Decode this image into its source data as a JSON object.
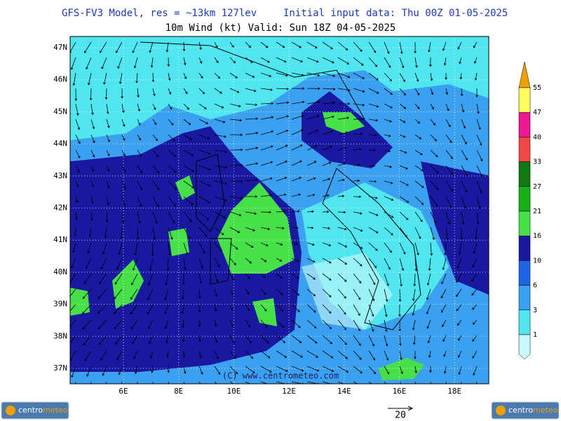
{
  "header": {
    "model": "GFS-FV3 Model, res = ~13km 127lev",
    "init": "Initial input data: Thu 00Z 01-05-2025",
    "field": "10m Wind (kt)  Valid: Sun 18Z 04-05-2025"
  },
  "map": {
    "lat_labels": [
      "47N",
      "46N",
      "45N",
      "44N",
      "43N",
      "42N",
      "41N",
      "40N",
      "39N",
      "38N",
      "37N"
    ],
    "lon_labels": [
      "6E",
      "8E",
      "10E",
      "12E",
      "14E",
      "16E",
      "18E"
    ],
    "watermark": "(C) www.centrometeo.com"
  },
  "legend": {
    "top_color": "#f0a000",
    "bottom_color": "#c8fafa",
    "levels": [
      {
        "label": "55",
        "color": "#ffff60"
      },
      {
        "label": "47",
        "color": "#f01890"
      },
      {
        "label": "40",
        "color": "#f04848"
      },
      {
        "label": "33",
        "color": "#107810"
      },
      {
        "label": "27",
        "color": "#18b018"
      },
      {
        "label": "21",
        "color": "#48e048"
      },
      {
        "label": "16",
        "color": "#1818a0"
      },
      {
        "label": "10",
        "color": "#1e64e6"
      },
      {
        "label": "6",
        "color": "#3ca0f0"
      },
      {
        "label": "3",
        "color": "#50e6f0"
      },
      {
        "label": "1",
        "color": "#c8fafa"
      }
    ]
  },
  "reference_vector": {
    "label": "20"
  },
  "logo": {
    "part1": "centro",
    "part2": "meteo"
  }
}
